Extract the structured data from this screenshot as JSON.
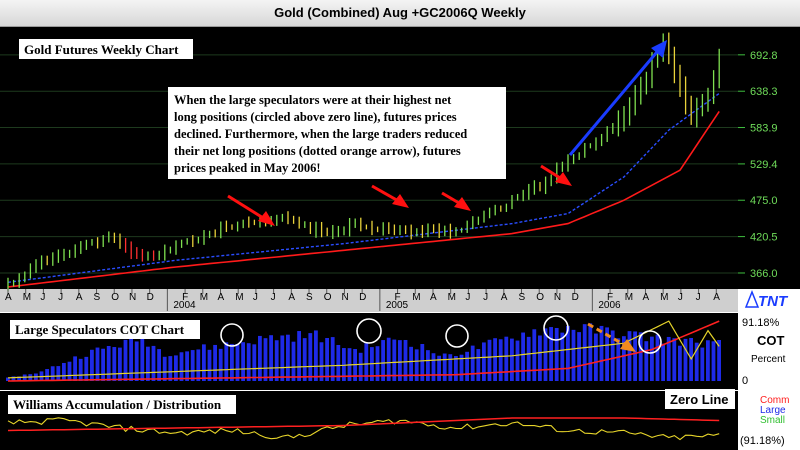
{
  "window": {
    "title": "Gold (Combined) Aug +GC2006Q Weekly"
  },
  "panels": {
    "price_label": "Gold Futures Weekly Chart",
    "annotation": [
      "When the large speculators were at their highest net",
      "long positions (circled above zero line), futures prices",
      "declined. Furthermore, when the large traders reduced",
      "their net long positions (dotted orange arrow), futures",
      "prices peaked in May 2006!"
    ],
    "cot_label": "Large Speculators COT Chart",
    "williams_label": "Williams Accumulation / Distribution",
    "zero_line_label": "Zero Line",
    "cot_top": "91.18%",
    "cot_bottom": "(91.18%)",
    "cot_zero": "0",
    "cot_title": "COT",
    "cot_percent": "Percent",
    "legend": {
      "comm": "Comm",
      "large": "Large",
      "small": "Small"
    },
    "logo": "TNT"
  },
  "colors": {
    "background": "#000000",
    "up_bar": "#7fe050",
    "down_bar": "#e8d23a",
    "red_bar": "#ff3030",
    "ma_red": "#ff1a1a",
    "ma_blue": "#2a4dff",
    "cot_bars": "#1e2ae8",
    "comm_line": "#ff2020",
    "small_line": "#e6d42a",
    "arrow_red": "#ff1010",
    "arrow_blue": "#1a3cff",
    "arrow_orange": "#f08a1e"
  },
  "chart_data": {
    "type": "bar",
    "title": "Gold (Combined) Aug +GC2006Q Weekly",
    "y_ticks": [
      366.0,
      420.5,
      475.0,
      529.4,
      583.9,
      638.3,
      692.8
    ],
    "ylim": [
      345,
      730
    ],
    "x_months": [
      "A",
      "M",
      "J",
      "J",
      "A",
      "S",
      "O",
      "N",
      "D",
      "2004",
      "F",
      "M",
      "A",
      "M",
      "J",
      "J",
      "A",
      "S",
      "O",
      "N",
      "D",
      "2005",
      "F",
      "M",
      "A",
      "M",
      "J",
      "J",
      "A",
      "S",
      "O",
      "N",
      "D",
      "2006",
      "F",
      "M",
      "A",
      "M",
      "J",
      "J",
      "A"
    ],
    "year_labels": [
      "2004",
      "2005",
      "2006"
    ],
    "price_anchors": [
      [
        0,
        348
      ],
      [
        4,
        372
      ],
      [
        9,
        395
      ],
      [
        18,
        418
      ],
      [
        24,
        388
      ],
      [
        30,
        405
      ],
      [
        38,
        432
      ],
      [
        50,
        448
      ],
      [
        56,
        425
      ],
      [
        62,
        440
      ],
      [
        70,
        428
      ],
      [
        80,
        430
      ],
      [
        86,
        455
      ],
      [
        94,
        492
      ],
      [
        102,
        545
      ],
      [
        110,
        600
      ],
      [
        114,
        660
      ],
      [
        117,
        718
      ],
      [
        120,
        640
      ],
      [
        122,
        598
      ],
      [
        125,
        630
      ],
      [
        127,
        688
      ]
    ],
    "ma_red_anchors": [
      [
        0,
        345
      ],
      [
        30,
        375
      ],
      [
        60,
        400
      ],
      [
        90,
        425
      ],
      [
        100,
        440
      ],
      [
        110,
        475
      ],
      [
        120,
        520
      ],
      [
        127,
        608
      ]
    ],
    "ma_blue_anchors": [
      [
        0,
        352
      ],
      [
        30,
        385
      ],
      [
        60,
        410
      ],
      [
        90,
        440
      ],
      [
        100,
        455
      ],
      [
        110,
        510
      ],
      [
        118,
        580
      ],
      [
        127,
        635
      ]
    ],
    "cot_pct_anchors": [
      [
        0,
        0.05
      ],
      [
        6,
        0.15
      ],
      [
        14,
        0.45
      ],
      [
        24,
        0.7
      ],
      [
        28,
        0.45
      ],
      [
        36,
        0.55
      ],
      [
        48,
        0.72
      ],
      [
        55,
        0.75
      ],
      [
        62,
        0.5
      ],
      [
        70,
        0.7
      ],
      [
        78,
        0.4
      ],
      [
        84,
        0.55
      ],
      [
        94,
        0.82
      ],
      [
        100,
        0.88
      ],
      [
        108,
        0.8
      ],
      [
        114,
        0.72
      ],
      [
        120,
        0.65
      ],
      [
        127,
        0.6
      ]
    ],
    "comm_anchors": [
      [
        0,
        0.0
      ],
      [
        40,
        0.05
      ],
      [
        80,
        0.1
      ],
      [
        100,
        0.2
      ],
      [
        115,
        0.5
      ],
      [
        127,
        0.95
      ]
    ],
    "small_anchors": [
      [
        0,
        0.05
      ],
      [
        30,
        0.15
      ],
      [
        60,
        0.25
      ],
      [
        90,
        0.4
      ],
      [
        110,
        0.6
      ],
      [
        118,
        0.95
      ],
      [
        122,
        0.35
      ],
      [
        125,
        0.8
      ],
      [
        127,
        0.55
      ]
    ],
    "williams_anchors": [
      [
        0,
        0.5
      ],
      [
        10,
        0.55
      ],
      [
        20,
        0.4
      ],
      [
        30,
        0.3
      ],
      [
        40,
        0.35
      ],
      [
        50,
        0.2
      ],
      [
        60,
        0.45
      ],
      [
        70,
        0.55
      ],
      [
        80,
        0.4
      ],
      [
        90,
        0.5
      ],
      [
        100,
        0.35
      ],
      [
        110,
        0.3
      ],
      [
        118,
        0.2
      ],
      [
        127,
        0.25
      ]
    ],
    "williams_red_anchors": [
      [
        0,
        0.35
      ],
      [
        30,
        0.4
      ],
      [
        60,
        0.45
      ],
      [
        90,
        0.6
      ],
      [
        110,
        0.6
      ],
      [
        127,
        0.55
      ]
    ],
    "series": [
      {
        "name": "Comm"
      },
      {
        "name": "Large"
      },
      {
        "name": "Small"
      }
    ]
  }
}
